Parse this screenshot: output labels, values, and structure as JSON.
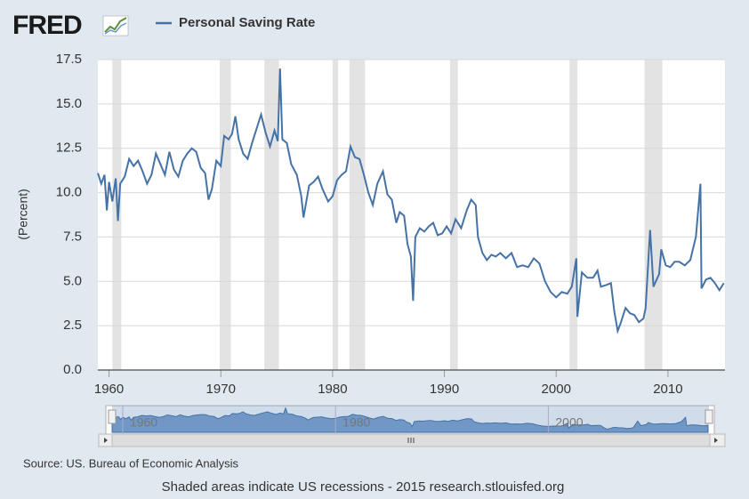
{
  "logo": "FRED",
  "chart_data": {
    "type": "line",
    "y_label": "(Percent)",
    "series": [
      {
        "name": "Personal Saving Rate",
        "color": "#4572a7",
        "x": [
          1959.0,
          1959.3,
          1959.6,
          1959.8,
          1960.0,
          1960.3,
          1960.6,
          1960.8,
          1961.0,
          1961.4,
          1961.8,
          1962.2,
          1962.6,
          1963.0,
          1963.4,
          1963.8,
          1964.2,
          1964.6,
          1965.0,
          1965.4,
          1965.8,
          1966.2,
          1966.6,
          1967.0,
          1967.4,
          1967.8,
          1968.2,
          1968.6,
          1968.9,
          1969.2,
          1969.6,
          1970.0,
          1970.3,
          1970.7,
          1971.0,
          1971.3,
          1971.6,
          1972.0,
          1972.4,
          1972.8,
          1973.2,
          1973.6,
          1974.0,
          1974.4,
          1974.8,
          1975.1,
          1975.3,
          1975.5,
          1975.9,
          1976.3,
          1976.8,
          1977.2,
          1977.4,
          1977.9,
          1978.3,
          1978.7,
          1979.1,
          1979.6,
          1980.0,
          1980.4,
          1980.8,
          1981.2,
          1981.6,
          1982.0,
          1982.4,
          1982.8,
          1983.2,
          1983.6,
          1984.0,
          1984.5,
          1984.9,
          1985.3,
          1985.7,
          1986.0,
          1986.4,
          1986.7,
          1987.0,
          1987.2,
          1987.4,
          1987.8,
          1988.2,
          1988.6,
          1989.0,
          1989.4,
          1989.8,
          1990.2,
          1990.6,
          1991.0,
          1991.5,
          1992.0,
          1992.4,
          1992.8,
          1993.0,
          1993.4,
          1993.8,
          1994.2,
          1994.6,
          1995.0,
          1995.5,
          1996.0,
          1996.5,
          1997.0,
          1997.5,
          1998.0,
          1998.5,
          1999.0,
          1999.5,
          2000.0,
          2000.5,
          2001.0,
          2001.4,
          2001.8,
          2001.9,
          2002.3,
          2002.8,
          2003.3,
          2003.7,
          2004.0,
          2004.5,
          2004.9,
          2005.2,
          2005.5,
          2005.8,
          2006.2,
          2006.6,
          2007.0,
          2007.4,
          2007.8,
          2008.0,
          2008.4,
          2008.7,
          2009.2,
          2009.4,
          2009.8,
          2010.2,
          2010.6,
          2011.0,
          2011.5,
          2012.0,
          2012.5,
          2012.9,
          2013.0,
          2013.4,
          2013.8,
          2014.2,
          2014.6,
          2015.0
        ],
        "values": [
          11.1,
          10.5,
          11.0,
          9.0,
          10.6,
          9.5,
          10.8,
          8.4,
          10.5,
          10.9,
          11.9,
          11.5,
          11.8,
          11.2,
          10.5,
          11.0,
          12.2,
          11.6,
          11.0,
          12.3,
          11.3,
          10.9,
          11.8,
          12.2,
          12.5,
          12.3,
          11.4,
          11.1,
          9.6,
          10.2,
          11.8,
          11.5,
          13.2,
          13.0,
          13.3,
          14.3,
          13.0,
          12.2,
          11.9,
          12.8,
          13.6,
          14.4,
          13.4,
          12.6,
          13.5,
          12.9,
          17.0,
          13.0,
          12.8,
          11.6,
          11.0,
          9.8,
          8.6,
          10.4,
          10.6,
          10.9,
          10.2,
          9.5,
          9.8,
          10.7,
          11.0,
          11.2,
          12.6,
          12.0,
          11.9,
          11.0,
          10.0,
          9.3,
          10.5,
          11.2,
          9.9,
          9.6,
          8.3,
          8.9,
          8.7,
          7.1,
          6.4,
          3.9,
          7.5,
          8.0,
          7.8,
          8.1,
          8.3,
          7.6,
          7.7,
          8.1,
          7.7,
          8.5,
          8.0,
          9.0,
          9.6,
          9.3,
          7.5,
          6.6,
          6.2,
          6.5,
          6.4,
          6.6,
          6.3,
          6.6,
          5.8,
          5.9,
          5.8,
          6.3,
          6.0,
          5.0,
          4.4,
          4.1,
          4.4,
          4.3,
          4.7,
          6.3,
          3.0,
          5.5,
          5.2,
          5.2,
          5.6,
          4.7,
          4.8,
          4.9,
          3.3,
          2.2,
          2.7,
          3.5,
          3.2,
          3.1,
          2.7,
          2.9,
          3.5,
          7.9,
          4.7,
          5.4,
          6.8,
          5.9,
          5.8,
          6.1,
          6.1,
          5.9,
          6.2,
          7.5,
          10.5,
          4.6,
          5.1,
          5.2,
          4.9,
          4.5,
          4.9
        ]
      }
    ],
    "recessions": [
      [
        1960.3,
        1961.1
      ],
      [
        1969.9,
        1970.9
      ],
      [
        1973.9,
        1975.2
      ],
      [
        1980.0,
        1980.5
      ],
      [
        1981.5,
        1982.9
      ],
      [
        1990.5,
        1991.2
      ],
      [
        2001.2,
        2001.9
      ],
      [
        2007.9,
        2009.5
      ]
    ],
    "xlim": [
      1959,
      2015.1
    ],
    "xticks": [
      1960,
      1970,
      1980,
      1990,
      2000,
      2010
    ],
    "ylim": [
      0,
      17.5
    ],
    "yticks": [
      {
        "value": 0,
        "label": "0.0"
      },
      2.5,
      {
        "value": 5,
        "label": "5.0"
      },
      7.5,
      {
        "value": 10,
        "label": "10.0"
      },
      12.5,
      {
        "value": 15,
        "label": "15.0"
      },
      17.5
    ],
    "grid": true,
    "navigator_xticks": [
      1960,
      1980,
      2000
    ],
    "source": "Source: US. Bureau of Economic Analysis",
    "footer": "Shaded areas indicate US recessions - 2015 research.stlouisfed.org"
  }
}
